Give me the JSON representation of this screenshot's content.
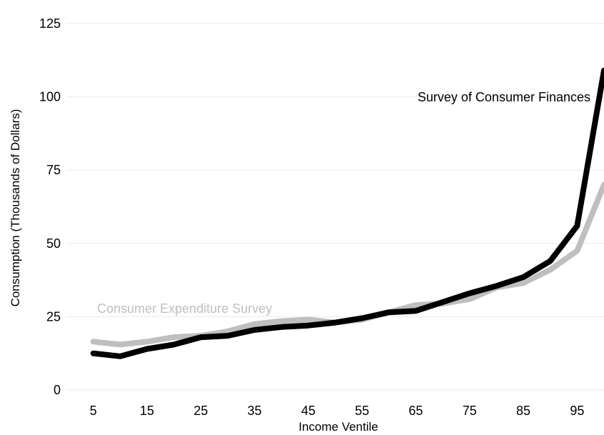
{
  "chart_data": {
    "type": "line",
    "title": "",
    "xlabel": "Income Ventile",
    "ylabel": "Consumption (Thousands of Dollars)",
    "x": [
      5,
      10,
      15,
      20,
      25,
      30,
      35,
      40,
      45,
      50,
      55,
      60,
      65,
      70,
      75,
      80,
      85,
      90,
      95,
      100
    ],
    "xticks": [
      5,
      15,
      25,
      35,
      45,
      55,
      65,
      75,
      85,
      95
    ],
    "yticks": [
      0,
      25,
      50,
      75,
      100,
      125
    ],
    "xlim": [
      0,
      100
    ],
    "ylim": [
      0,
      125
    ],
    "grid": true,
    "legend": "none",
    "series": [
      {
        "name": "Survey of Consumer Finances",
        "color": "#000000",
        "values": [
          12.5,
          11.5,
          14,
          15.5,
          18,
          18.5,
          20.5,
          21.5,
          22,
          23,
          24.5,
          26.5,
          27,
          30,
          33,
          35.5,
          38.5,
          44,
          56,
          109
        ]
      },
      {
        "name": "Consumer Expenditure Survey",
        "color": "#bfbfbf",
        "values": [
          16.5,
          15.5,
          16.5,
          18,
          18.5,
          20,
          22.5,
          23.5,
          24,
          23,
          24,
          26.5,
          29,
          29.5,
          31,
          35,
          36.5,
          41,
          47.5,
          70
        ]
      }
    ]
  }
}
